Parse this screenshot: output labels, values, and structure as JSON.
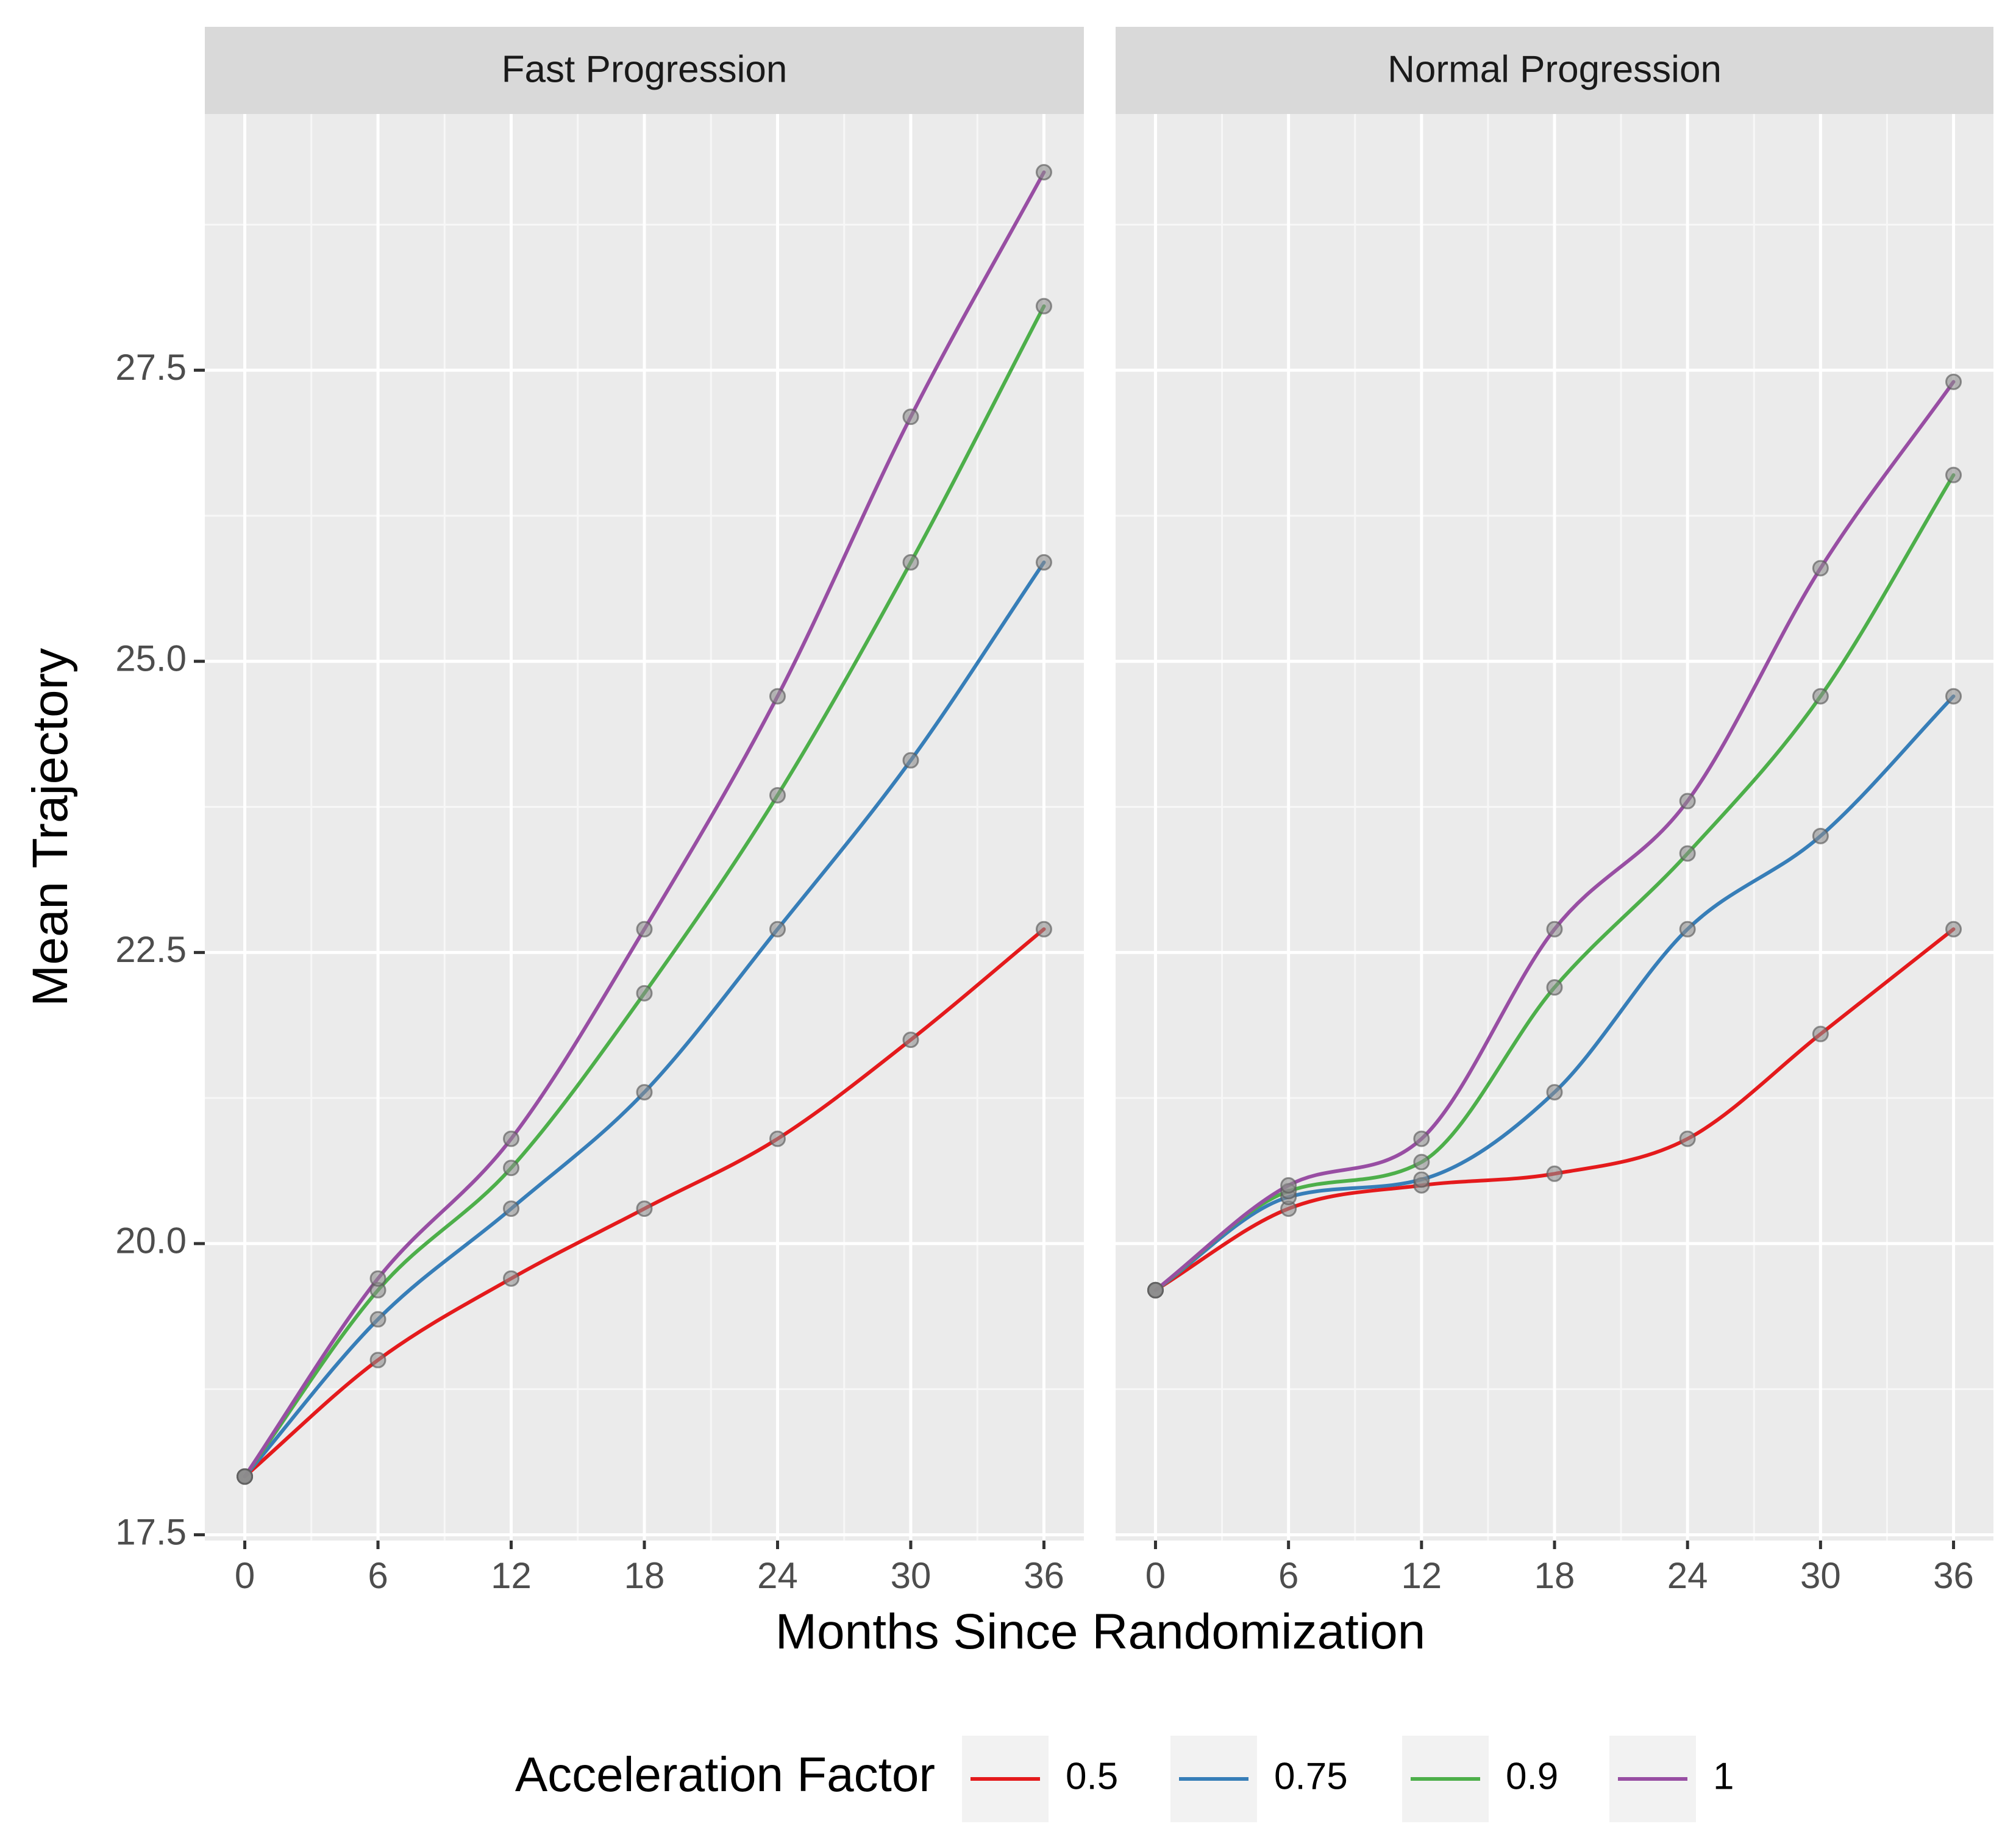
{
  "chart_data": {
    "type": "line",
    "xlabel": "Months Since Randomization",
    "ylabel": "Mean Trajectory",
    "x_ticks": [
      0,
      6,
      12,
      18,
      24,
      30,
      36
    ],
    "y_ticks": [
      "17.5",
      "20.0",
      "22.5",
      "25.0",
      "27.5"
    ],
    "xlim": [
      -1.8,
      37.8
    ],
    "ylim": [
      17.45,
      29.7
    ],
    "grid": true,
    "legend": {
      "title": "Acceleration Factor",
      "position": "bottom",
      "items": [
        {
          "label": "0.5",
          "color": "#E41A1C"
        },
        {
          "label": "0.75",
          "color": "#377EB8"
        },
        {
          "label": "0.9",
          "color": "#4DAF4A"
        },
        {
          "label": "1",
          "color": "#984EA3"
        }
      ]
    },
    "panels": [
      {
        "title": "Fast Progression",
        "x": [
          0,
          6,
          12,
          18,
          24,
          30,
          36
        ],
        "series": [
          {
            "name": "0.5",
            "color": "#E41A1C",
            "values": [
              18.0,
              19.0,
              19.7,
              20.3,
              20.9,
              21.75,
              22.7
            ]
          },
          {
            "name": "0.75",
            "color": "#377EB8",
            "values": [
              18.0,
              19.35,
              20.3,
              21.3,
              22.7,
              24.15,
              25.85
            ]
          },
          {
            "name": "0.9",
            "color": "#4DAF4A",
            "values": [
              18.0,
              19.6,
              20.65,
              22.15,
              23.85,
              25.85,
              28.05
            ]
          },
          {
            "name": "1",
            "color": "#984EA3",
            "values": [
              18.0,
              19.7,
              20.9,
              22.7,
              24.7,
              27.1,
              29.2
            ]
          }
        ]
      },
      {
        "title": "Normal Progression",
        "x": [
          0,
          6,
          12,
          18,
          24,
          30,
          36
        ],
        "series": [
          {
            "name": "0.5",
            "color": "#E41A1C",
            "values": [
              19.6,
              20.3,
              20.5,
              20.6,
              20.9,
              21.8,
              22.7
            ]
          },
          {
            "name": "0.75",
            "color": "#377EB8",
            "values": [
              19.6,
              20.4,
              20.55,
              21.3,
              22.7,
              23.5,
              24.7
            ]
          },
          {
            "name": "0.9",
            "color": "#4DAF4A",
            "values": [
              19.6,
              20.45,
              20.7,
              22.2,
              23.35,
              24.7,
              26.6
            ]
          },
          {
            "name": "1",
            "color": "#984EA3",
            "values": [
              19.6,
              20.5,
              20.9,
              22.7,
              23.8,
              25.8,
              27.4
            ]
          }
        ]
      }
    ]
  }
}
